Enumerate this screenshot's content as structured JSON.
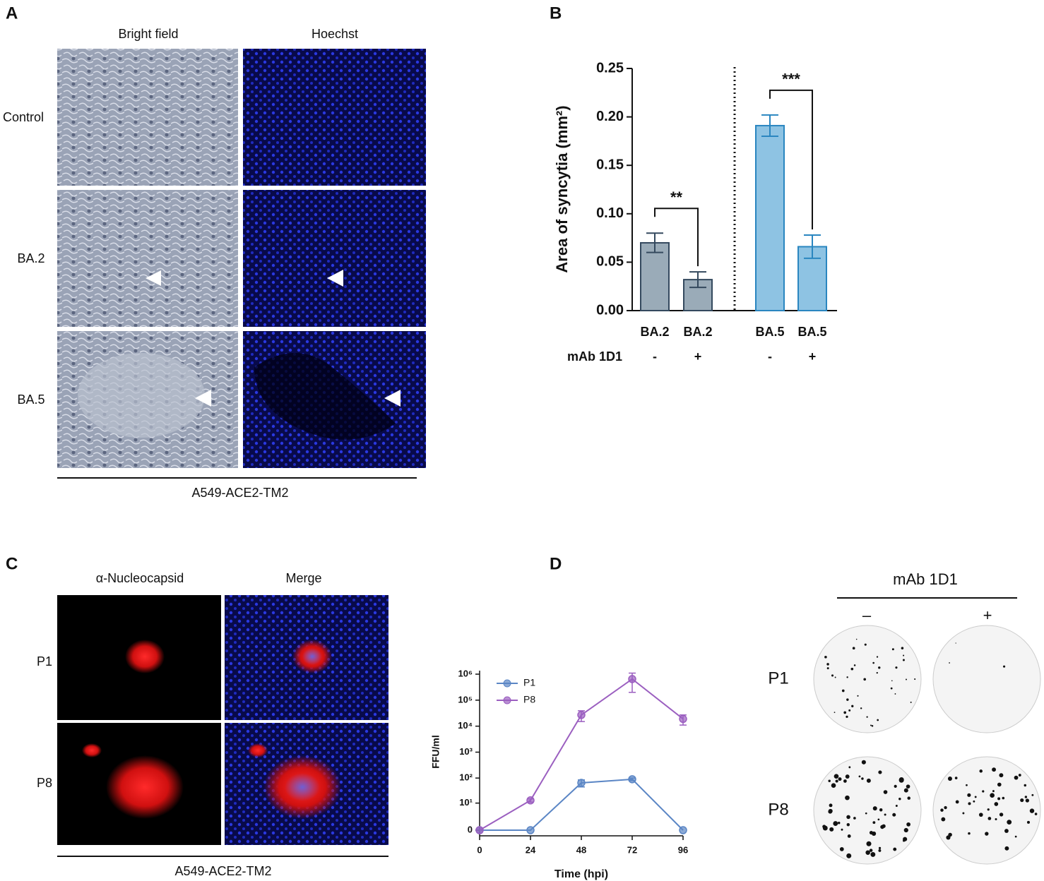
{
  "letters": [
    "A",
    "B",
    "C",
    "D"
  ],
  "panels": {
    "A": {
      "columns": [
        "Bright field",
        "Hoechst"
      ],
      "rows": [
        "Control",
        "BA.2",
        "BA.5"
      ],
      "caption": "A549-ACE2-TM2"
    },
    "C": {
      "columns": [
        "α-Nucleocapsid",
        "Merge"
      ],
      "rows": [
        "P1",
        "P8"
      ],
      "caption": "A549-ACE2-TM2"
    },
    "D_plates": {
      "title": "mAb 1D1",
      "columns": [
        "–",
        "+"
      ],
      "rows": [
        "P1",
        "P8"
      ]
    }
  },
  "chart_data": [
    {
      "type": "bar",
      "ylabel": "Area of syncytia (mm²)",
      "categories": [
        "BA.2",
        "BA.2",
        "BA.5",
        "BA.5"
      ],
      "values": [
        0.07,
        0.032,
        0.191,
        0.066
      ],
      "errors": [
        0.01,
        0.008,
        0.011,
        0.012
      ],
      "colors": [
        "#9aabb8",
        "#9aabb8",
        "#8ec3e3",
        "#8ec3e3"
      ],
      "edge_colors": [
        "#34495e",
        "#34495e",
        "#2a86c0",
        "#2a86c0"
      ],
      "group_label": "mAb 1D1",
      "treatment": [
        "-",
        "+",
        "-",
        "+"
      ],
      "annotations": [
        "**",
        "***"
      ],
      "ylim": [
        0,
        0.25
      ],
      "yticks": [
        {
          "value": 0,
          "label": "0.00"
        },
        {
          "value": 0.05,
          "label": "0.05"
        },
        {
          "value": 0.1,
          "label": "0.10"
        },
        {
          "value": 0.15,
          "label": "0.15"
        },
        {
          "value": 0.2,
          "label": "0.20"
        },
        {
          "value": 0.25,
          "label": "0.25"
        }
      ]
    },
    {
      "type": "line",
      "xlabel": "Time (hpi)",
      "ylabel": "FFU/ml",
      "x": [
        0,
        24,
        48,
        72,
        96
      ],
      "series": [
        {
          "name": "P1",
          "color": "#5b86c5",
          "values": [
            0,
            0,
            65,
            90,
            0
          ],
          "errors": [
            0,
            0,
            20,
            10,
            0
          ]
        },
        {
          "name": "P8",
          "color": "#9b5fc0",
          "values": [
            0,
            13,
            27000,
            650000,
            19000
          ],
          "errors": [
            0,
            2,
            12000,
            450000,
            8000
          ]
        }
      ],
      "xlim": [
        0,
        96
      ],
      "xticks": [
        0,
        24,
        48,
        72,
        96
      ],
      "ylim": [
        0,
        1000000
      ],
      "yscale": "symlog",
      "yticks": [
        0,
        {
          "value": 10,
          "label": "10¹"
        },
        {
          "value": 100,
          "label": "10²"
        },
        {
          "value": 1000,
          "label": "10³"
        },
        {
          "value": 10000,
          "label": "10⁴"
        },
        {
          "value": 100000,
          "label": "10⁵"
        },
        {
          "value": 1000000,
          "label": "10⁶"
        }
      ],
      "legend": "upper left"
    }
  ]
}
